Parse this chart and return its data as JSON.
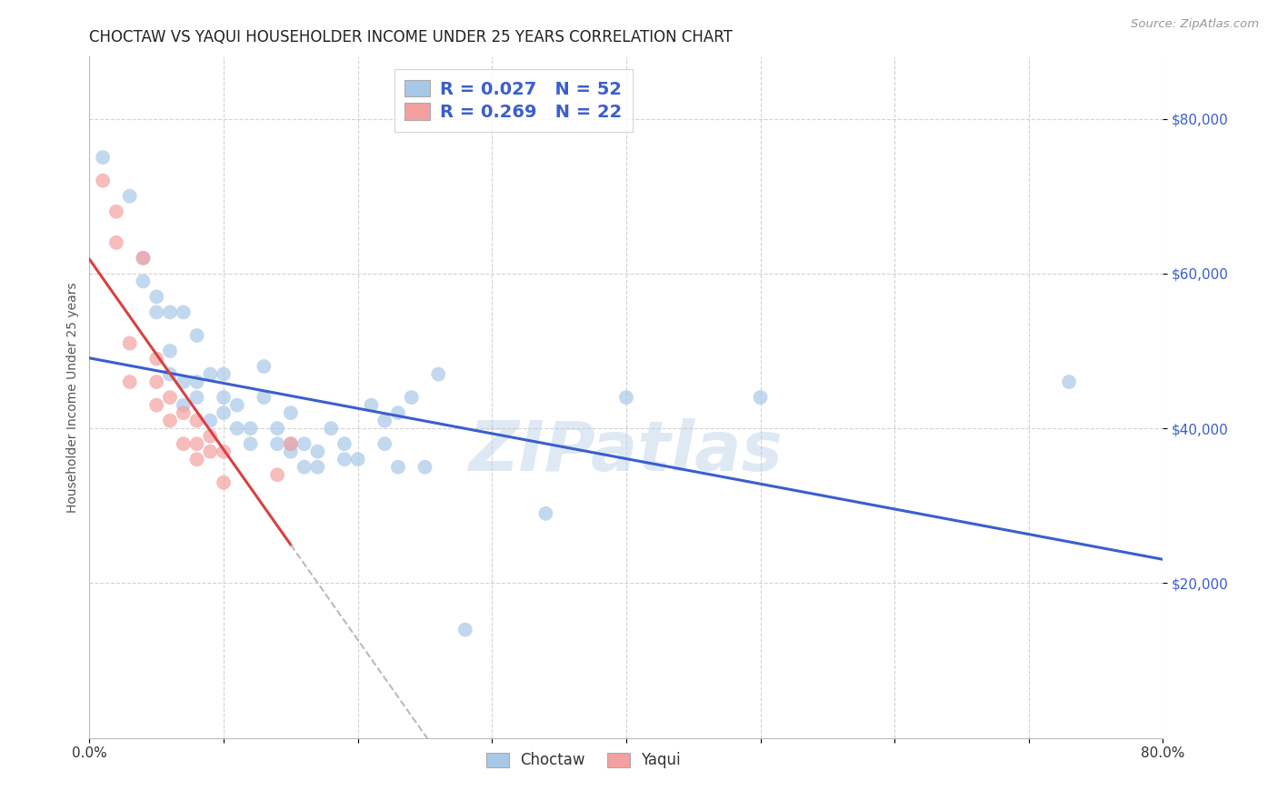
{
  "title": "CHOCTAW VS YAQUI HOUSEHOLDER INCOME UNDER 25 YEARS CORRELATION CHART",
  "source": "Source: ZipAtlas.com",
  "ylabel": "Householder Income Under 25 years",
  "watermark": "ZIPatlas",
  "legend_r1": "R = 0.027   N = 52",
  "legend_r2": "R = 0.269   N = 22",
  "ytick_labels": [
    "$20,000",
    "$40,000",
    "$60,000",
    "$80,000"
  ],
  "ytick_values": [
    20000,
    40000,
    60000,
    80000
  ],
  "choctaw_color": "#a8c8e8",
  "yaqui_color": "#f4a0a0",
  "choctaw_line_color": "#3a5fcd",
  "yaqui_line_color": "#d94040",
  "background_color": "#ffffff",
  "grid_color": "#c8c8c8",
  "choctaw_x": [
    1,
    3,
    4,
    4,
    5,
    5,
    6,
    6,
    6,
    7,
    7,
    7,
    8,
    8,
    8,
    9,
    9,
    10,
    10,
    10,
    11,
    11,
    12,
    12,
    13,
    13,
    14,
    14,
    15,
    15,
    15,
    16,
    16,
    17,
    17,
    18,
    19,
    19,
    20,
    21,
    22,
    22,
    23,
    23,
    24,
    25,
    26,
    28,
    34,
    40,
    50,
    73
  ],
  "choctaw_y": [
    75000,
    70000,
    59000,
    62000,
    55000,
    57000,
    47000,
    50000,
    55000,
    43000,
    46000,
    55000,
    44000,
    46000,
    52000,
    41000,
    47000,
    42000,
    44000,
    47000,
    40000,
    43000,
    38000,
    40000,
    44000,
    48000,
    38000,
    40000,
    37000,
    38000,
    42000,
    35000,
    38000,
    35000,
    37000,
    40000,
    36000,
    38000,
    36000,
    43000,
    38000,
    41000,
    35000,
    42000,
    44000,
    35000,
    47000,
    14000,
    29000,
    44000,
    44000,
    46000
  ],
  "yaqui_x": [
    1,
    2,
    2,
    3,
    3,
    4,
    5,
    5,
    5,
    6,
    6,
    7,
    7,
    8,
    8,
    8,
    9,
    9,
    10,
    10,
    14,
    15
  ],
  "yaqui_y": [
    72000,
    64000,
    68000,
    46000,
    51000,
    62000,
    43000,
    46000,
    49000,
    41000,
    44000,
    38000,
    42000,
    36000,
    38000,
    41000,
    37000,
    39000,
    33000,
    37000,
    34000,
    38000
  ],
  "xlim": [
    0,
    80
  ],
  "ylim": [
    0,
    88000
  ],
  "title_fontsize": 12,
  "axis_label_fontsize": 10,
  "tick_fontsize": 11,
  "legend_fontsize": 14
}
